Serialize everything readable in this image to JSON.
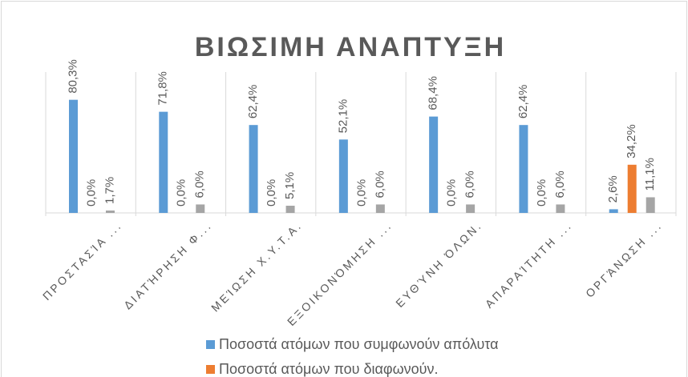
{
  "chart_data": {
    "type": "bar",
    "title": "ΒΙΩΣΙΜΗ ΑΝΑΠΤΥΞΗ",
    "categories": [
      "ΠΡΟΣΤΑΣΊΑ ...",
      "ΔΙΑΤΉΡΗΣΗ Φ...",
      "ΜΕΊΩΣΗ Χ.Υ.Τ.Α.",
      "ΕΞΟΙΚΟΝΌΜΗΣΗ ...",
      "ΕΥΘΎΝΗ ΌΛΩΝ.",
      "ΑΠΑΡΑΊΤΗΤΗ ...",
      "ΟΡΓΆΝΩΣΗ ..."
    ],
    "series": [
      {
        "name": "Ποσοστά ατόμων που συμφωνούν απόλυτα",
        "color": "#5b9bd5",
        "values": [
          80.3,
          71.8,
          62.4,
          52.1,
          68.4,
          62.4,
          2.6
        ],
        "value_labels": [
          "80,3%",
          "71,8%",
          "62,4%",
          "52,1%",
          "68,4%",
          "62,4%",
          "2,6%"
        ]
      },
      {
        "name": "Ποσοστά ατόμων που διαφωνούν.",
        "color": "#ed7d31",
        "values": [
          0,
          0,
          0,
          0,
          0,
          0,
          34.2
        ],
        "value_labels": [
          "0,0%",
          "0,0%",
          "0,0%",
          "0,0%",
          "0,0%",
          "0,0%",
          "34,2%"
        ]
      },
      {
        "color": "#a5a5a5",
        "values": [
          1.7,
          6.0,
          5.1,
          6.0,
          6.0,
          6.0,
          11.1
        ],
        "value_labels": [
          "1,7%",
          "6,0%",
          "5,1%",
          "6,0%",
          "6,0%",
          "6,0%",
          "11,1%"
        ]
      }
    ]
  }
}
